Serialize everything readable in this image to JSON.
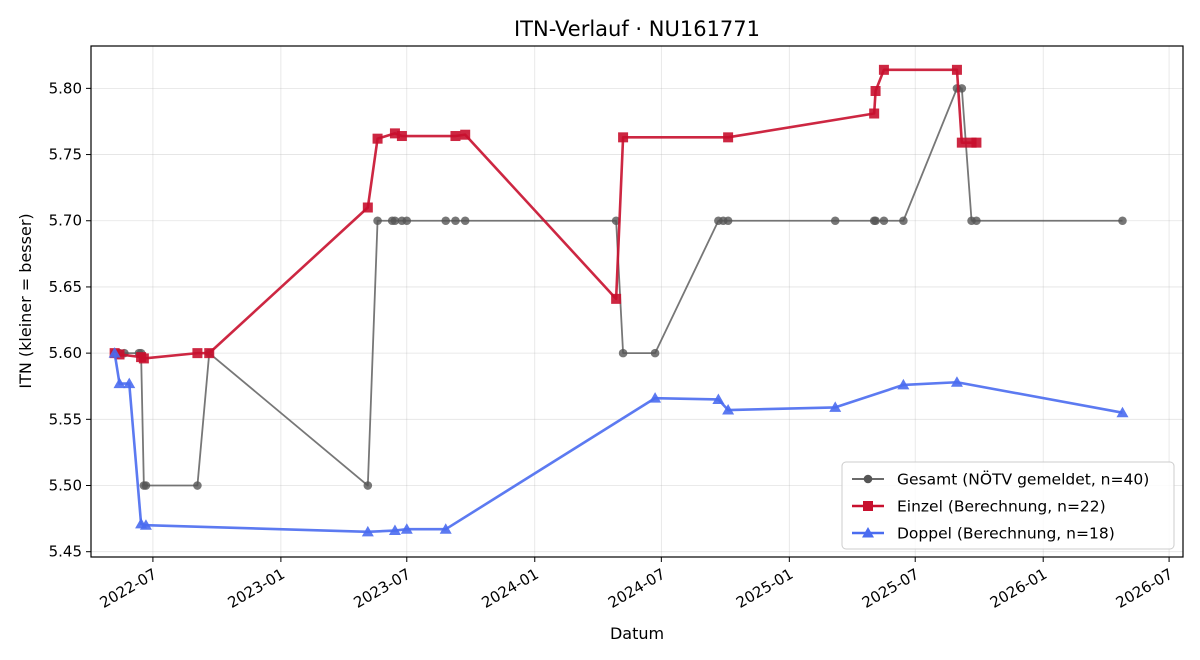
{
  "chart_data": {
    "type": "line",
    "title": "ITN-Verlauf · NU161771",
    "xlabel": "Datum",
    "ylabel": "ITN  (kleiner = besser)",
    "xlim": [
      "2022-04-03",
      "2026-07-21"
    ],
    "ylim": [
      5.446,
      5.832
    ],
    "xticks": [
      "2022-07",
      "2023-01",
      "2023-07",
      "2024-01",
      "2024-07",
      "2025-01",
      "2025-07",
      "2026-01",
      "2026-07"
    ],
    "yticks": [
      "5.45",
      "5.50",
      "5.55",
      "5.60",
      "5.65",
      "5.70",
      "5.75",
      "5.80"
    ],
    "grid": true,
    "legend_position": "lower-right",
    "series": [
      {
        "name": "Gesamt (NÖTV gemeldet, n=40)",
        "color": "#555555",
        "marker": "circle",
        "points": [
          [
            "2022-05-07",
            5.6
          ],
          [
            "2022-05-14",
            5.6
          ],
          [
            "2022-05-21",
            5.6
          ],
          [
            "2022-06-11",
            5.6
          ],
          [
            "2022-06-14",
            5.6
          ],
          [
            "2022-06-18",
            5.5
          ],
          [
            "2022-06-21",
            5.5
          ],
          [
            "2022-09-03",
            5.5
          ],
          [
            "2022-09-20",
            5.6
          ],
          [
            "2023-05-06",
            5.5
          ],
          [
            "2023-05-20",
            5.7
          ],
          [
            "2023-06-10",
            5.7
          ],
          [
            "2023-06-14",
            5.7
          ],
          [
            "2023-06-24",
            5.7
          ],
          [
            "2023-07-01",
            5.7
          ],
          [
            "2023-08-26",
            5.7
          ],
          [
            "2023-09-09",
            5.7
          ],
          [
            "2023-09-23",
            5.7
          ],
          [
            "2024-04-27",
            5.7
          ],
          [
            "2024-05-07",
            5.6
          ],
          [
            "2024-06-22",
            5.6
          ],
          [
            "2024-09-21",
            5.7
          ],
          [
            "2024-09-28",
            5.7
          ],
          [
            "2024-10-05",
            5.7
          ],
          [
            "2025-03-08",
            5.7
          ],
          [
            "2025-05-03",
            5.7
          ],
          [
            "2025-05-05",
            5.7
          ],
          [
            "2025-05-17",
            5.7
          ],
          [
            "2025-06-14",
            5.7
          ],
          [
            "2025-08-30",
            5.8
          ],
          [
            "2025-09-06",
            5.8
          ],
          [
            "2025-09-20",
            5.7
          ],
          [
            "2025-09-27",
            5.7
          ],
          [
            "2026-04-25",
            5.7
          ]
        ]
      },
      {
        "name": "Einzel (Berechnung, n=22)",
        "color": "#c8102e",
        "marker": "square",
        "points": [
          [
            "2022-05-07",
            5.6
          ],
          [
            "2022-05-14",
            5.599
          ],
          [
            "2022-06-14",
            5.597
          ],
          [
            "2022-06-18",
            5.596
          ],
          [
            "2022-09-03",
            5.6
          ],
          [
            "2022-09-20",
            5.6
          ],
          [
            "2023-05-06",
            5.71
          ],
          [
            "2023-05-20",
            5.762
          ],
          [
            "2023-06-14",
            5.766
          ],
          [
            "2023-06-24",
            5.764
          ],
          [
            "2023-09-09",
            5.764
          ],
          [
            "2023-09-23",
            5.765
          ],
          [
            "2024-04-27",
            5.641
          ],
          [
            "2024-05-07",
            5.763
          ],
          [
            "2024-10-05",
            5.763
          ],
          [
            "2025-05-03",
            5.781
          ],
          [
            "2025-05-05",
            5.798
          ],
          [
            "2025-05-17",
            5.814
          ],
          [
            "2025-08-30",
            5.814
          ],
          [
            "2025-09-06",
            5.759
          ],
          [
            "2025-09-20",
            5.759
          ],
          [
            "2025-09-27",
            5.759
          ]
        ]
      },
      {
        "name": "Doppel (Berechnung, n=18)",
        "color": "#4a6cf0",
        "marker": "triangle",
        "points": [
          [
            "2022-05-07",
            5.6
          ],
          [
            "2022-05-14",
            5.577
          ],
          [
            "2022-05-28",
            5.577
          ],
          [
            "2022-06-14",
            5.471
          ],
          [
            "2022-06-21",
            5.47
          ],
          [
            "2023-05-06",
            5.465
          ],
          [
            "2023-06-14",
            5.466
          ],
          [
            "2023-07-01",
            5.467
          ],
          [
            "2023-08-26",
            5.467
          ],
          [
            "2024-06-22",
            5.566
          ],
          [
            "2024-09-21",
            5.565
          ],
          [
            "2024-10-05",
            5.557
          ],
          [
            "2025-03-08",
            5.559
          ],
          [
            "2025-06-14",
            5.576
          ],
          [
            "2025-08-30",
            5.578
          ],
          [
            "2026-04-25",
            5.555
          ]
        ]
      }
    ]
  }
}
